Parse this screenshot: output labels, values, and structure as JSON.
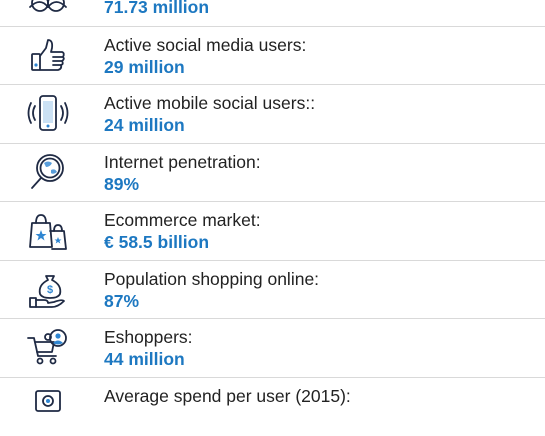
{
  "stats": [
    {
      "icon": "people-icon",
      "label": "",
      "value": "71.73 million"
    },
    {
      "icon": "thumbs-up-icon",
      "label": "Active social media users:",
      "value": "29 million"
    },
    {
      "icon": "mobile-phone-icon",
      "label": "Active mobile social users::",
      "value": "24 million"
    },
    {
      "icon": "globe-magnifier-icon",
      "label": "Internet penetration:",
      "value": "89%"
    },
    {
      "icon": "shopping-bags-icon",
      "label": "Ecommerce market:",
      "value": "€ 58.5 billion"
    },
    {
      "icon": "money-bag-hand-icon",
      "label": "Population shopping online:",
      "value": "87%"
    },
    {
      "icon": "shopping-cart-person-icon",
      "label": "Eshoppers:",
      "value": "44 million"
    },
    {
      "icon": "cash-register-icon",
      "label": "Average spend per user (2015):",
      "value": ""
    }
  ],
  "colors": {
    "accent": "#1d78c1",
    "text": "#222222",
    "divider": "#d9d9d9"
  }
}
